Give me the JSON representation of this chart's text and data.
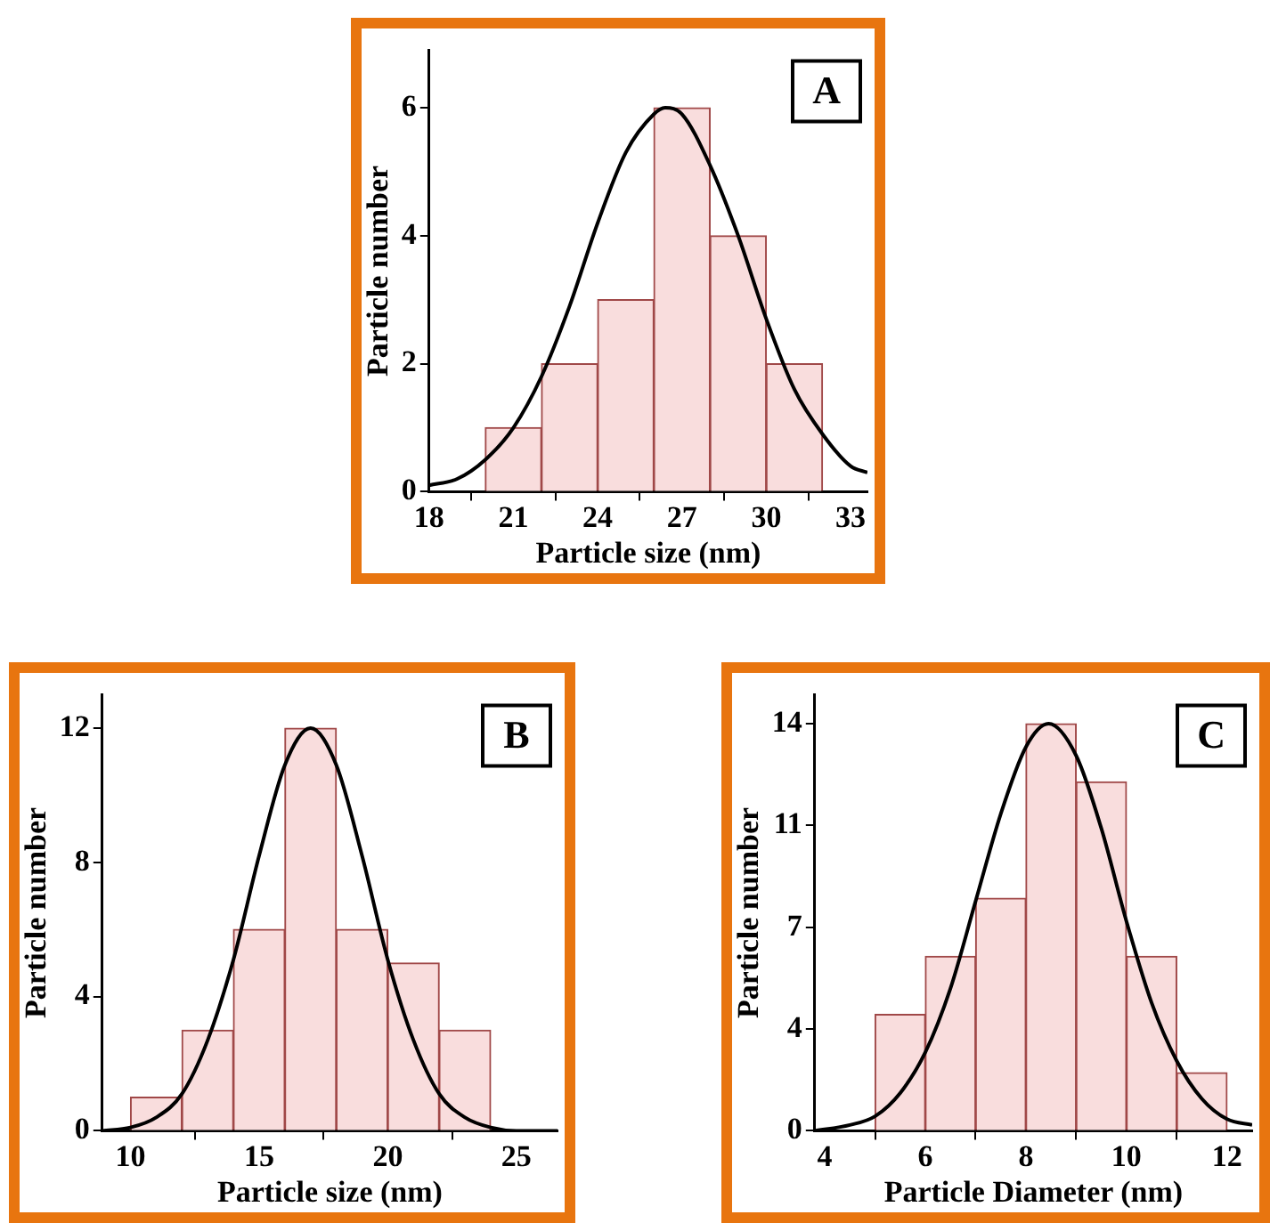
{
  "chart_data": [
    {
      "type": "histogram",
      "title": "A",
      "xlabel": "Particle size (nm)",
      "ylabel": "Particle number",
      "xlim": [
        18,
        33.6
      ],
      "ylim": [
        0,
        6.9
      ],
      "xticks": [
        18,
        21,
        24,
        27,
        30,
        33
      ],
      "yticks": [
        0,
        2,
        4,
        6
      ],
      "grid": false,
      "legend": false,
      "series": [
        {
          "type": "histogram",
          "color": "#f9dddd",
          "bins": [
            20,
            22,
            24,
            26,
            28,
            30,
            32
          ],
          "values": [
            1,
            2,
            3,
            6,
            4,
            2
          ]
        },
        {
          "type": "line",
          "color": "#000000",
          "x": [
            18,
            19,
            20,
            21,
            22,
            23,
            24,
            25,
            26,
            26.4,
            27,
            28,
            29,
            30,
            31,
            32,
            33,
            33.6
          ],
          "values": [
            0.1,
            0.2,
            0.5,
            1.0,
            1.8,
            2.9,
            4.2,
            5.3,
            5.9,
            6.0,
            5.9,
            5.1,
            4.0,
            2.7,
            1.6,
            0.9,
            0.4,
            0.3
          ]
        }
      ]
    },
    {
      "type": "histogram",
      "title": "B",
      "xlabel": "Particle size (nm)",
      "ylabel": "Particle number",
      "xlim": [
        8.9,
        26.6
      ],
      "ylim": [
        0,
        13
      ],
      "xticks": [
        10,
        15,
        20,
        25
      ],
      "yticks": [
        0,
        4,
        8,
        12
      ],
      "grid": false,
      "legend": false,
      "series": [
        {
          "type": "histogram",
          "color": "#f9dddd",
          "bins": [
            10,
            12,
            14,
            16,
            18,
            20,
            22,
            24
          ],
          "values": [
            1,
            3,
            6,
            12,
            6,
            5,
            3
          ]
        },
        {
          "type": "line",
          "color": "#000000",
          "x": [
            8.9,
            10,
            11,
            12,
            13,
            14,
            15,
            16,
            17,
            18,
            19,
            20,
            21,
            22,
            23,
            24,
            25,
            26,
            26.6
          ],
          "values": [
            0.0,
            0.1,
            0.4,
            1.1,
            2.7,
            5.1,
            8.2,
            10.9,
            12.0,
            10.9,
            8.2,
            5.1,
            2.7,
            1.1,
            0.4,
            0.1,
            0.0,
            0.0,
            0.0
          ]
        }
      ]
    },
    {
      "type": "histogram",
      "title": "C",
      "xlabel": "Particle Diameter (nm)",
      "ylabel": "Particle number",
      "xlim": [
        3.8,
        12.5
      ],
      "ylim": [
        0,
        15
      ],
      "xticks": [
        4,
        6,
        8,
        10,
        12
      ],
      "yticks": [
        0,
        {
          "value": 3.5,
          "label": "4"
        },
        7,
        {
          "value": 10.5,
          "label": "11"
        },
        14
      ],
      "grid": false,
      "legend": false,
      "series": [
        {
          "type": "histogram",
          "color": "#f9dddd",
          "bins": [
            5,
            6,
            7,
            8,
            9,
            10,
            11,
            12
          ],
          "values": [
            4,
            6,
            8,
            14,
            12,
            6,
            2
          ]
        },
        {
          "type": "line",
          "color": "#000000",
          "x": [
            3.8,
            4.5,
            5,
            5.5,
            6,
            6.5,
            7,
            7.5,
            8,
            8.45,
            9,
            9.5,
            10,
            10.5,
            11,
            11.5,
            12,
            12.5
          ],
          "values": [
            0.0,
            0.2,
            0.5,
            1.3,
            2.7,
            4.9,
            7.9,
            10.9,
            13.2,
            14.0,
            12.9,
            10.4,
            7.2,
            4.4,
            2.4,
            1.1,
            0.4,
            0.2
          ]
        }
      ]
    }
  ]
}
